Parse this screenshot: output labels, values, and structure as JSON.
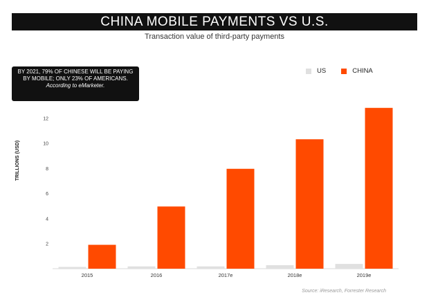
{
  "title": "CHINA MOBILE PAYMENTS VS U.S.",
  "subtitle": "Transaction value of third-party payments",
  "callout": {
    "text": "BY 2021, 79% OF CHINESE WILL BE PAYING BY MOBILE; ONLY 23% OF AMERICANS.",
    "source": "According to eMarketer."
  },
  "source_note": "Source: iResearch, Forrester Research",
  "colors": {
    "us": "#e0e0e0",
    "china": "#ff4a00",
    "banner": "#111111"
  },
  "chart_data": {
    "type": "bar",
    "categories": [
      "2015",
      "2016",
      "2017e",
      "2018e",
      "2019e"
    ],
    "series": [
      {
        "name": "US",
        "values": [
          0.14,
          0.18,
          0.18,
          0.28,
          0.38
        ]
      },
      {
        "name": "CHINA",
        "values": [
          1.9,
          4.95,
          7.95,
          10.3,
          12.8
        ]
      }
    ],
    "ylabel": "TRILLIONS (USD)",
    "yticks": [
      2,
      4,
      6,
      8,
      10,
      12
    ],
    "ylim": [
      0,
      14
    ],
    "grid": false,
    "legend": "top-right"
  }
}
